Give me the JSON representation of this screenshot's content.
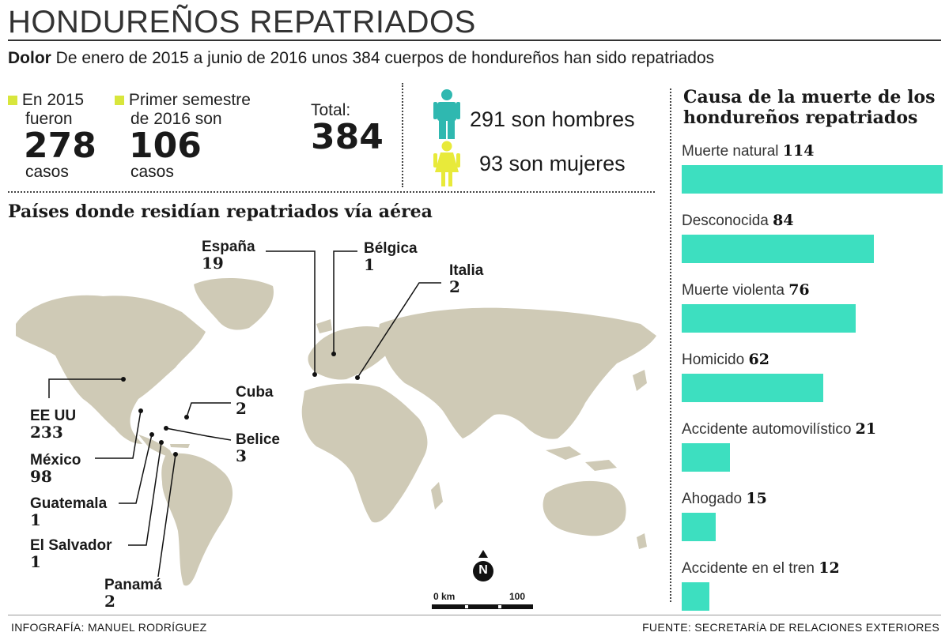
{
  "title": "HONDUREÑOS REPATRIADOS",
  "subtitle": {
    "lead": "Dolor",
    "text": "De enero de 2015 a junio de 2016 unos 384 cuerpos de hondureños han sido repatriados"
  },
  "stats": {
    "y2015": {
      "label_line1": "En 2015",
      "label_line2": "fueron",
      "value": "278",
      "unit": "casos"
    },
    "y2016": {
      "label_line1": "Primer semestre",
      "label_line2": "de 2016 son",
      "value": "106",
      "unit": "casos"
    },
    "total": {
      "label": "Total:",
      "value": "384"
    }
  },
  "gender": {
    "men": "291 son hombres",
    "women": "93 son mujeres"
  },
  "colors": {
    "accent_yellow": "#d8e63c",
    "men_teal": "#2fb8b0",
    "women_yellow": "#e8ea3a",
    "bar": "#3ddfc0",
    "map": "#cfcab6"
  },
  "map": {
    "title": "Países donde residían repatriados vía aérea",
    "countries": [
      {
        "name": "España",
        "value": "19"
      },
      {
        "name": "Bélgica",
        "value": "1"
      },
      {
        "name": "Italia",
        "value": "2"
      },
      {
        "name": "Cuba",
        "value": "2"
      },
      {
        "name": "Belice",
        "value": "3"
      },
      {
        "name": "EE UU",
        "value": "233"
      },
      {
        "name": "México",
        "value": "98"
      },
      {
        "name": "Guatemala",
        "value": "1"
      },
      {
        "name": "El Salvador",
        "value": "1"
      },
      {
        "name": "Panamá",
        "value": "2"
      }
    ],
    "compass": "N",
    "scale_start": "0 km",
    "scale_end": "100"
  },
  "chart_data": {
    "type": "bar",
    "title": "Causa de la muerte de los hondureños repatriados",
    "categories": [
      "Muerte natural",
      "Desconocida",
      "Muerte violenta",
      "Homicido",
      "Accidente automovilístico",
      "Ahogado",
      "Accidente en el tren"
    ],
    "values": [
      114,
      84,
      76,
      62,
      21,
      15,
      12
    ],
    "value_labels": [
      "114",
      "84",
      "76",
      "62",
      "21",
      "15",
      "12"
    ],
    "orientation": "horizontal"
  },
  "footer": {
    "left": "INFOGRAFÍA: MANUEL RODRÍGUEZ",
    "right": "FUENTE: SECRETARÍA DE RELACIONES EXTERIORES"
  }
}
